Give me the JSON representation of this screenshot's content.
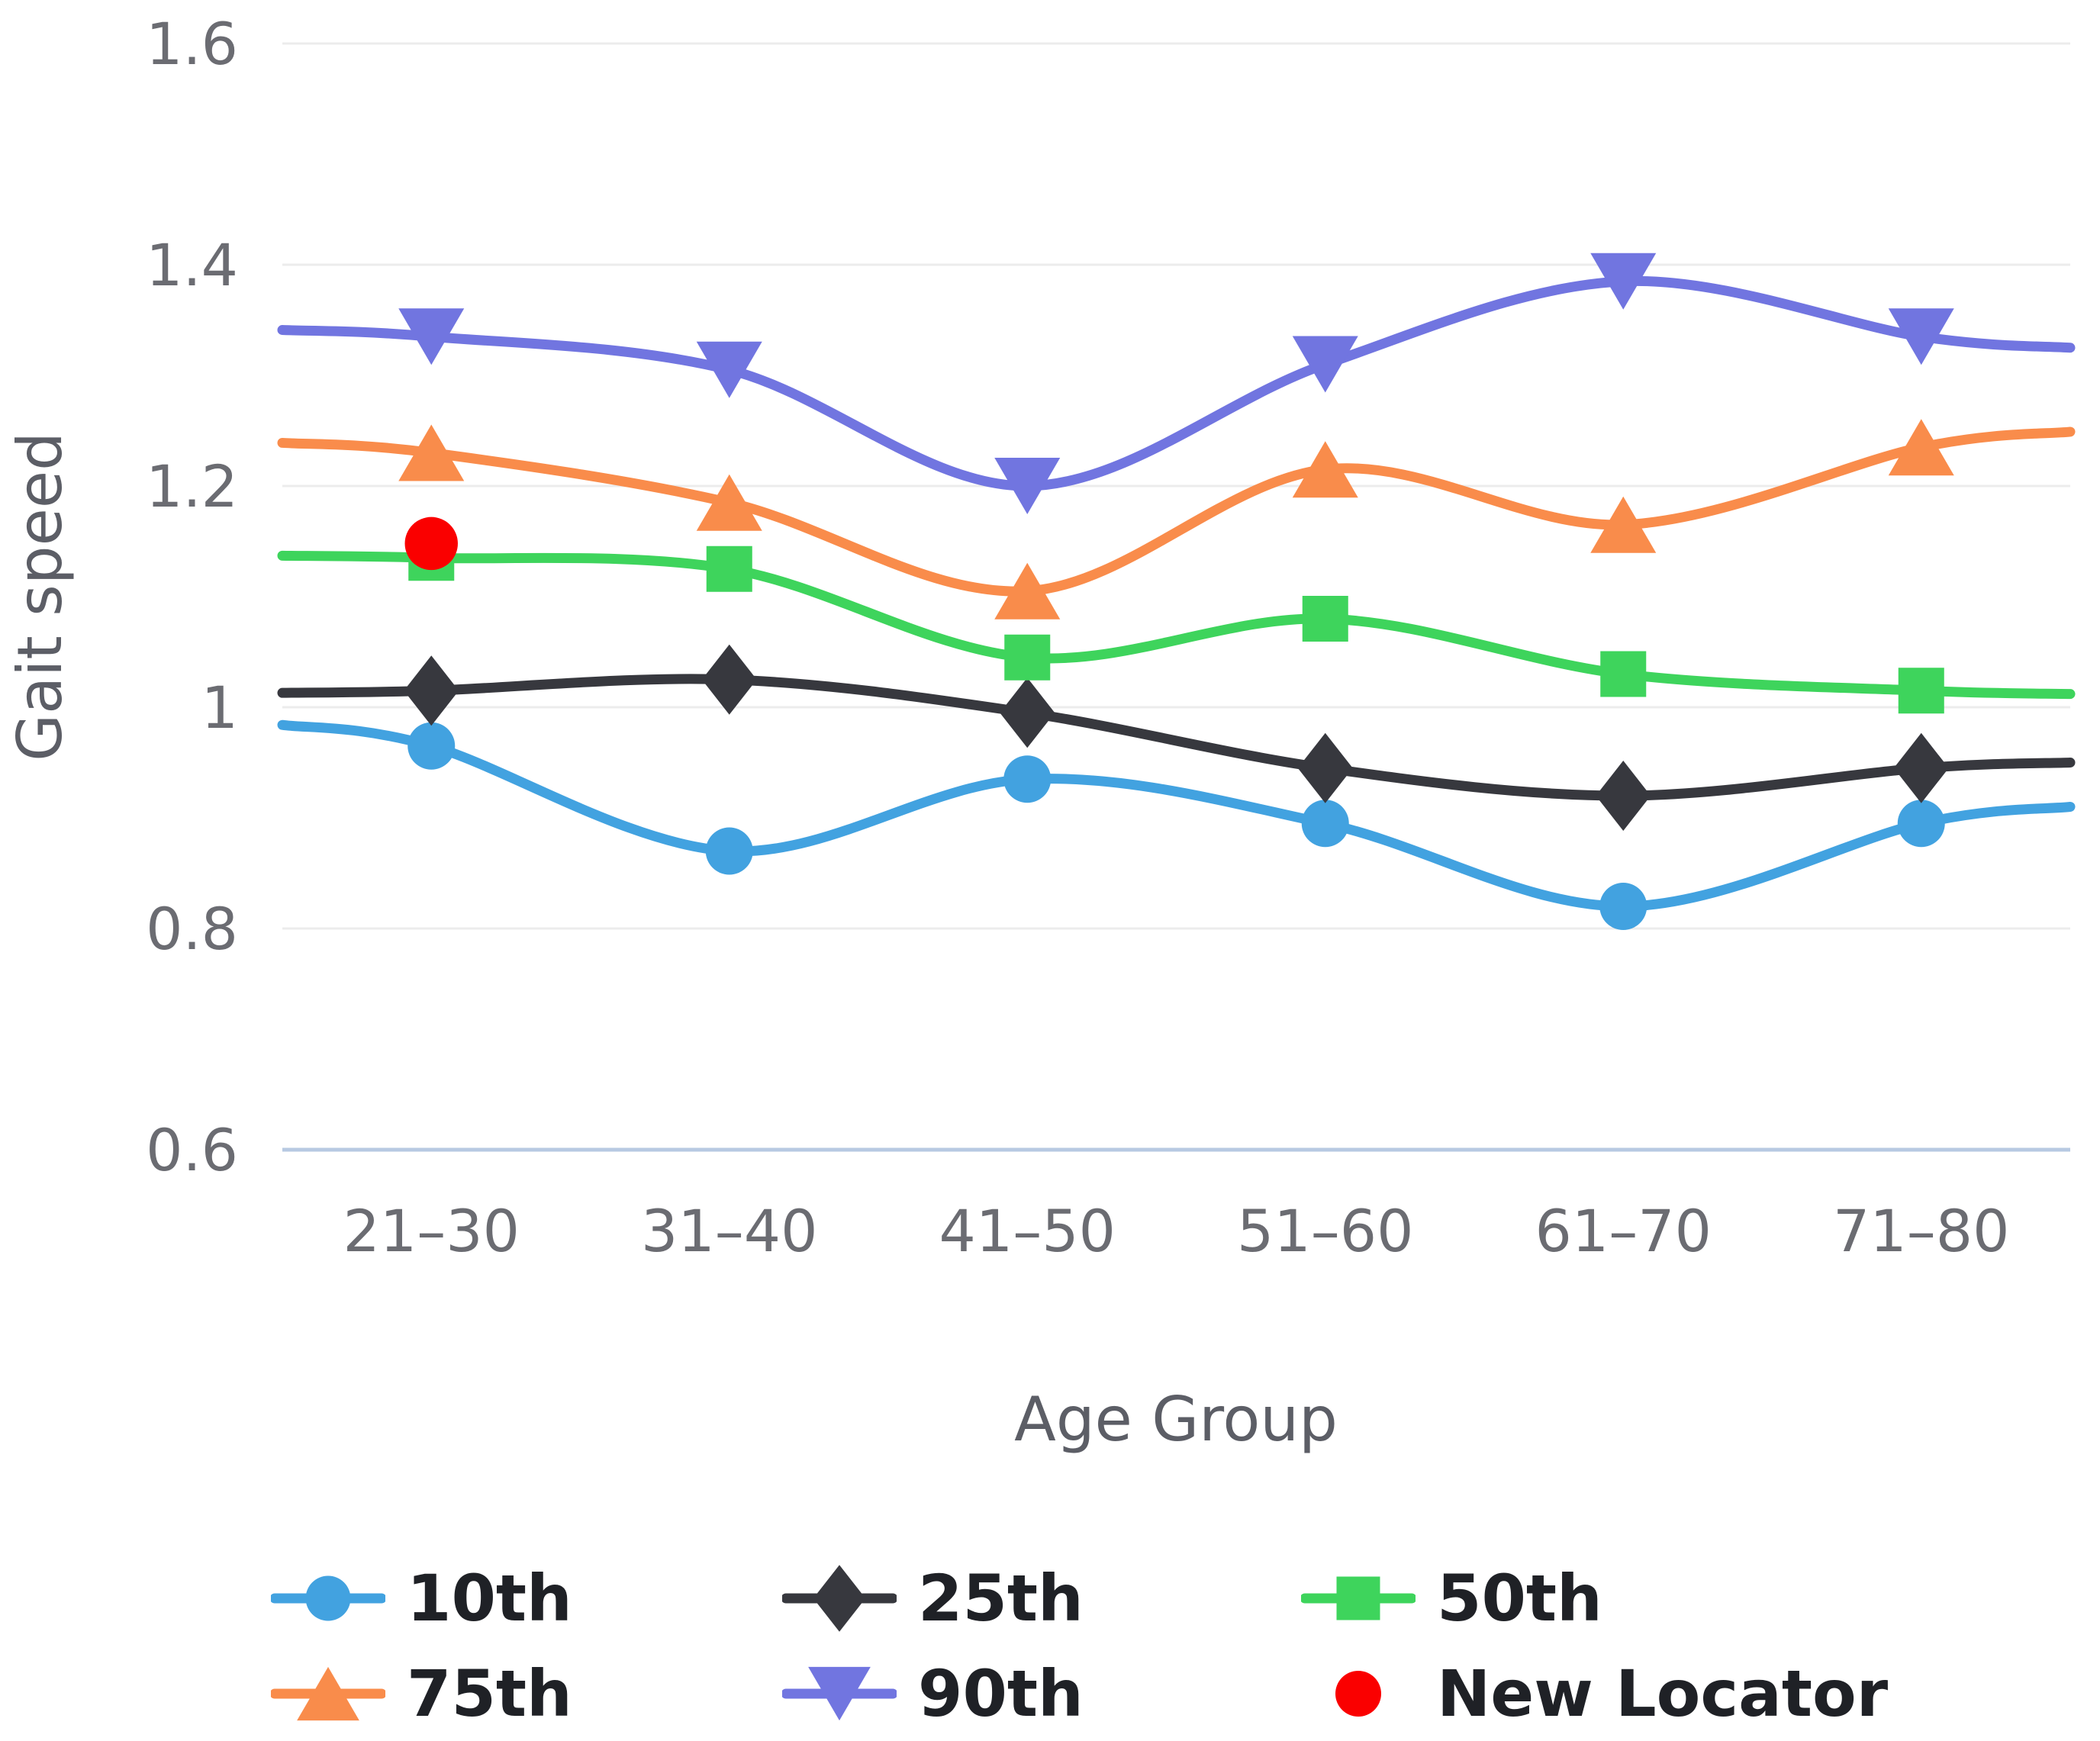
{
  "chart_data": {
    "type": "line",
    "title": "",
    "xlabel": "Age Group",
    "ylabel": "Gait speed",
    "categories": [
      "21–30",
      "31–40",
      "41–50",
      "51–60",
      "61–70",
      "71–80"
    ],
    "ylim": [
      0.6,
      1.6
    ],
    "yticks": [
      0.6,
      0.8,
      1,
      1.2,
      1.4,
      1.6
    ],
    "ytick_labels": [
      "0.6",
      "0.8",
      "1",
      "1.2",
      "1.4",
      "1.6"
    ],
    "grid": "horizontal",
    "curve": "smooth",
    "legend_position": "bottom",
    "series": [
      {
        "name": "10th",
        "color": "#42a2e0",
        "marker": "circle",
        "values": [
          0.965,
          0.87,
          0.935,
          0.895,
          0.82,
          0.895
        ]
      },
      {
        "name": "25th",
        "color": "#37383e",
        "marker": "diamond",
        "values": [
          1.015,
          1.025,
          0.995,
          0.945,
          0.92,
          0.945
        ]
      },
      {
        "name": "50th",
        "color": "#3ed45c",
        "marker": "square",
        "values": [
          1.135,
          1.125,
          1.045,
          1.08,
          1.03,
          1.015
        ]
      },
      {
        "name": "75th",
        "color": "#f98c4b",
        "marker": "triangle-up",
        "values": [
          1.23,
          1.185,
          1.105,
          1.215,
          1.165,
          1.235
        ]
      },
      {
        "name": "90th",
        "color": "#7175e0",
        "marker": "triangle-down",
        "values": [
          1.335,
          1.305,
          1.2,
          1.31,
          1.385,
          1.335
        ]
      }
    ],
    "locator": {
      "name": "New Locator",
      "color": "#fa0000",
      "marker": "circle",
      "category": "21–30",
      "value": 1.148
    }
  },
  "style_colors": {
    "gridline": "#ececec",
    "axis_line": "#b7c9e2",
    "tick_text": "#6b6c72",
    "axis_title_text": "#5c5e66",
    "legend_text": "#1f2126",
    "background": "#ffffff"
  }
}
